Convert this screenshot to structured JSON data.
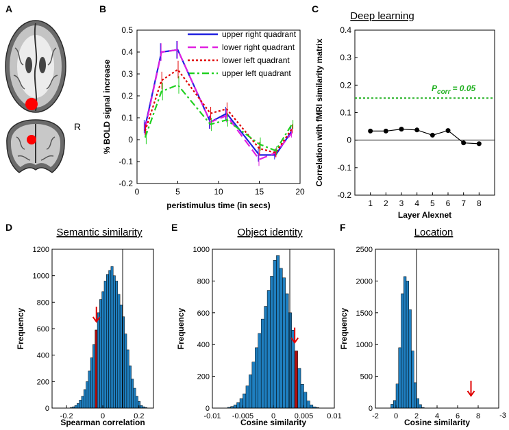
{
  "panel_labels": {
    "A": "A",
    "B": "B",
    "C": "C",
    "D": "D",
    "E": "E",
    "F": "F"
  },
  "brain": {
    "hemisphere_label": "R"
  },
  "chart_data": [
    {
      "id": "B",
      "type": "line",
      "xlabel": "peristimulus time (in secs)",
      "ylabel": "% BOLD signal increase",
      "xlim": [
        0,
        20
      ],
      "ylim": [
        -0.2,
        0.5
      ],
      "xticks": [
        0,
        5,
        10,
        15,
        20
      ],
      "yticks": [
        -0.2,
        -0.1,
        0,
        0.1,
        0.2,
        0.3,
        0.4,
        0.5
      ],
      "x": [
        1,
        3,
        5,
        9,
        11,
        15,
        17,
        19
      ],
      "series": [
        {
          "name": "upper right quadrant",
          "color": "#2020e0",
          "dash": "",
          "values": [
            0.06,
            0.4,
            0.41,
            0.08,
            0.12,
            -0.07,
            -0.07,
            0.04
          ]
        },
        {
          "name": "lower right quadrant",
          "color": "#e020e0",
          "dash": "12,6",
          "values": [
            0.05,
            0.4,
            0.41,
            0.08,
            0.11,
            -0.09,
            -0.06,
            0.03
          ]
        },
        {
          "name": "lower left quadrant",
          "color": "#e00000",
          "dash": "3,3",
          "values": [
            0.04,
            0.27,
            0.32,
            0.12,
            0.14,
            -0.04,
            -0.06,
            0.05
          ]
        },
        {
          "name": "upper left quadrant",
          "color": "#20d020",
          "dash": "10,4,3,4",
          "values": [
            0.01,
            0.22,
            0.25,
            0.07,
            0.09,
            -0.02,
            -0.05,
            0.07
          ]
        }
      ],
      "errors": [
        0.03,
        0.04,
        0.04,
        0.03,
        0.03,
        0.03,
        0.02,
        0.02
      ]
    },
    {
      "id": "C",
      "type": "line",
      "title": "Deep learning",
      "xlabel": "Layer Alexnet",
      "ylabel": "Correlation with fMRI similarity matrix",
      "xlim": [
        0,
        9
      ],
      "ylim": [
        -0.2,
        0.4
      ],
      "xticks": [
        1,
        2,
        3,
        4,
        5,
        6,
        7,
        8
      ],
      "yticks": [
        -0.2,
        -0.1,
        0,
        0.1,
        0.2,
        0.3,
        0.4
      ],
      "x": [
        1,
        2,
        3,
        4,
        5,
        6,
        7,
        8
      ],
      "values": [
        0.033,
        0.033,
        0.04,
        0.037,
        0.018,
        0.035,
        -0.01,
        -0.013
      ],
      "threshold": {
        "value": 0.153,
        "label": "P",
        "subscript": "corr",
        "suffix": "=  0.05",
        "color": "#20b020"
      }
    },
    {
      "id": "D",
      "type": "bar",
      "title": "Semantic similarity",
      "xlabel": "Spearman correlation",
      "ylabel": "Frequency",
      "xlim": [
        -0.28,
        0.28
      ],
      "ylim": [
        0,
        1200
      ],
      "xticks": [
        -0.2,
        0,
        0.2
      ],
      "xtick_labels": [
        "-0.2",
        "0",
        "0.2"
      ],
      "yticks": [
        0,
        200,
        400,
        600,
        800,
        1000,
        1200
      ],
      "bin_start": -0.18,
      "bin_width": 0.0125,
      "values": [
        5,
        10,
        20,
        35,
        60,
        90,
        140,
        200,
        280,
        380,
        480,
        590,
        720,
        820,
        880,
        960,
        1010,
        1040,
        1070,
        1000,
        960,
        860,
        780,
        690,
        560,
        440,
        320,
        220,
        150,
        90,
        50,
        20,
        10,
        5
      ],
      "highlight_bin": 11,
      "observed": -0.035,
      "threshold_line": 0.11
    },
    {
      "id": "E",
      "type": "bar",
      "title": "Object identity",
      "xlabel": "Cosine similarity",
      "ylabel": "Frequency",
      "xlim": [
        -0.01,
        0.01
      ],
      "ylim": [
        0,
        1000
      ],
      "xticks": [
        -0.01,
        -0.005,
        0,
        0.005,
        0.01
      ],
      "xtick_labels": [
        "-0.01",
        "-0.005",
        "0",
        "0.005",
        "0.01"
      ],
      "yticks": [
        0,
        200,
        400,
        600,
        800,
        1000
      ],
      "bin_start": -0.0075,
      "bin_width": 0.0005,
      "values": [
        5,
        10,
        20,
        35,
        60,
        90,
        140,
        210,
        290,
        380,
        470,
        560,
        640,
        740,
        830,
        930,
        960,
        880,
        820,
        720,
        600,
        490,
        360,
        250,
        150,
        100,
        45,
        20,
        8,
        3
      ],
      "highlight_bin": 22,
      "observed": 0.0035,
      "threshold_line": 0.0027
    },
    {
      "id": "F",
      "type": "bar",
      "title": "Location",
      "xlabel": "Cosine similarity",
      "ylabel": "Frequency",
      "axis_exponent": "-3",
      "xlim": [
        -2,
        10
      ],
      "ylim": [
        0,
        2500
      ],
      "xticks": [
        -2,
        0,
        2,
        4,
        6,
        8
      ],
      "xtick_labels": [
        "-2",
        "0",
        "2",
        "4",
        "6",
        "8"
      ],
      "yticks": [
        0,
        500,
        1000,
        1500,
        2000,
        2500
      ],
      "bin_start": -0.5,
      "bin_width": 0.25,
      "values": [
        60,
        120,
        380,
        950,
        1800,
        2070,
        2000,
        1550,
        900,
        400,
        150,
        55,
        10
      ],
      "highlight_bin": null,
      "observed": 7.3,
      "threshold_line": 2.0
    }
  ]
}
